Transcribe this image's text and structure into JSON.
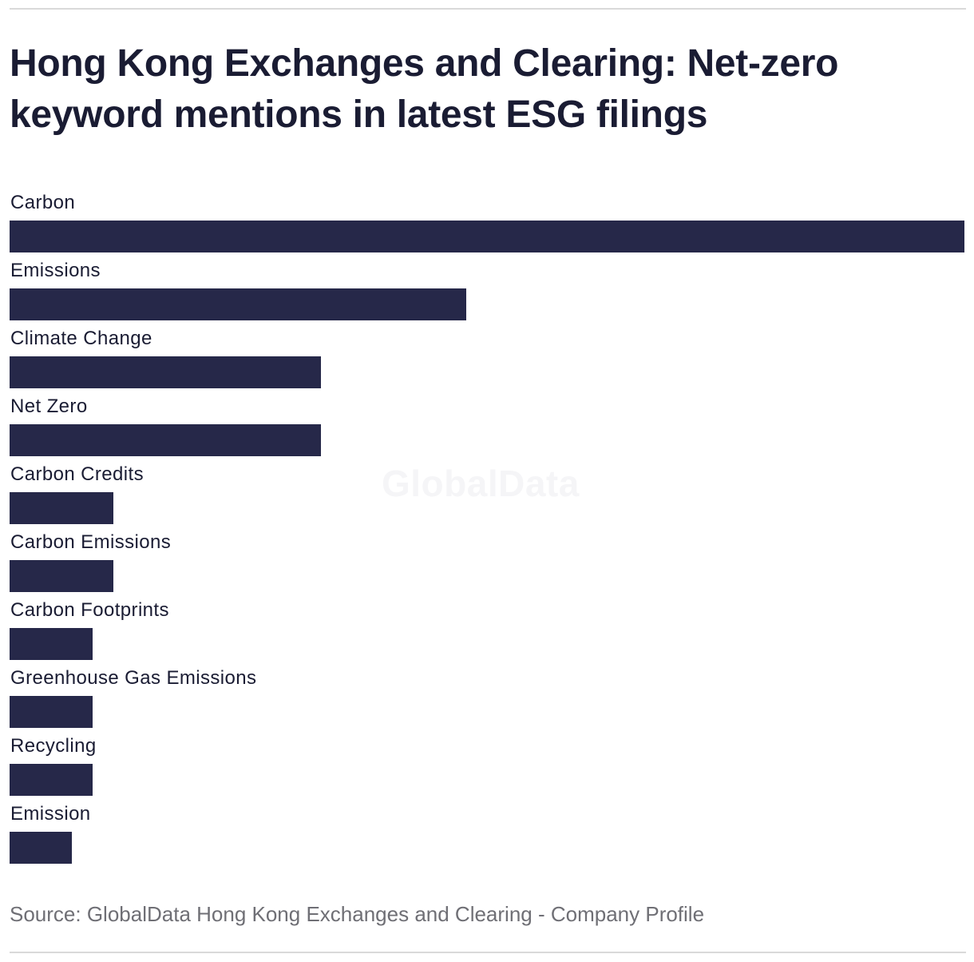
{
  "title": "Hong Kong Exchanges and Clearing: Net-zero keyword mentions in latest ESG filings",
  "watermark": "GlobalData",
  "source": "Source: GlobalData Hong Kong Exchanges and Clearing - Company Profile",
  "colors": {
    "bar": "#262849",
    "text": "#1a1c33",
    "source_text": "#6f6f75",
    "rule": "#d9d9d9",
    "watermark": "#f5f5f7"
  },
  "chart_data": {
    "type": "bar",
    "orientation": "horizontal",
    "title": "Hong Kong Exchanges and Clearing: Net-zero keyword mentions in latest ESG filings",
    "categories": [
      "Carbon",
      "Emissions",
      "Climate Change",
      "Net Zero",
      "Carbon Credits",
      "Carbon Emissions",
      "Carbon Footprints",
      "Greenhouse Gas Emissions",
      "Recycling",
      "Emission"
    ],
    "values": [
      46,
      22,
      15,
      15,
      5,
      5,
      4,
      4,
      4,
      3
    ],
    "xlabel": "",
    "ylabel": "",
    "xlim": [
      0,
      46
    ],
    "grid": false,
    "legend": "none"
  }
}
